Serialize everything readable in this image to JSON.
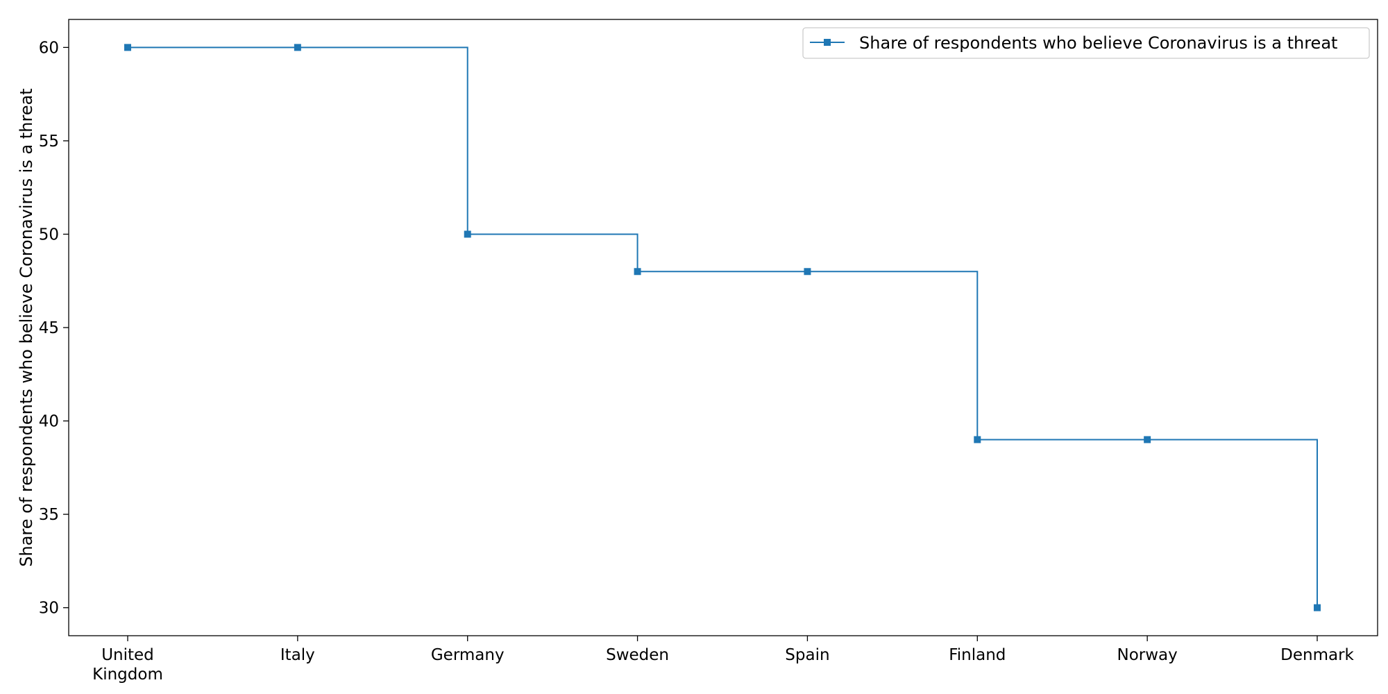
{
  "chart_data": {
    "type": "line",
    "line_style": "step-post",
    "categories": [
      "United\nKingdom",
      "Italy",
      "Germany",
      "Sweden",
      "Spain",
      "Finland",
      "Norway",
      "Denmark"
    ],
    "series": [
      {
        "name": "Share of respondents who believe Coronavirus is a threat",
        "values": [
          60,
          60,
          50,
          48,
          48,
          39,
          39,
          30
        ],
        "marker": "square"
      }
    ],
    "xlabel": "",
    "ylabel": "Share of respondents who believe Coronavirus is a threat",
    "yticks": [
      30,
      35,
      40,
      45,
      50,
      55,
      60
    ],
    "ylim": [
      28.5,
      61.5
    ],
    "grid": false,
    "legend_position": "top-right",
    "colors": {
      "series": "#1f77b4",
      "axes": "#000000"
    }
  }
}
